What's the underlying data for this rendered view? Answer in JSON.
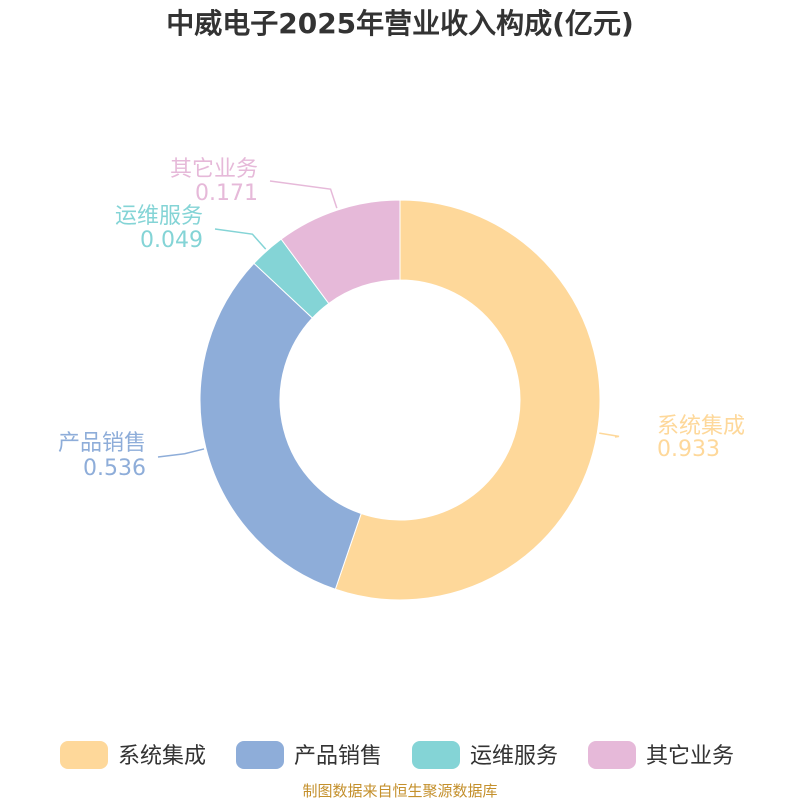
{
  "chart_data": {
    "type": "pie",
    "variant": "donut",
    "title": "中威电子2025年营业收入构成(亿元)",
    "slices": [
      {
        "name": "系统集成",
        "value": 0.933,
        "value_label": "0.933",
        "color": "#fed89a"
      },
      {
        "name": "产品销售",
        "value": 0.536,
        "value_label": "0.536",
        "color": "#8eadd9"
      },
      {
        "name": "运维服务",
        "value": 0.049,
        "value_label": "0.049",
        "color": "#84d4d6"
      },
      {
        "name": "其它业务",
        "value": 0.171,
        "value_label": "0.171",
        "color": "#e6b9d9"
      }
    ],
    "legend_position": "bottom",
    "source": "制图数据来自恒生聚源数据库"
  }
}
